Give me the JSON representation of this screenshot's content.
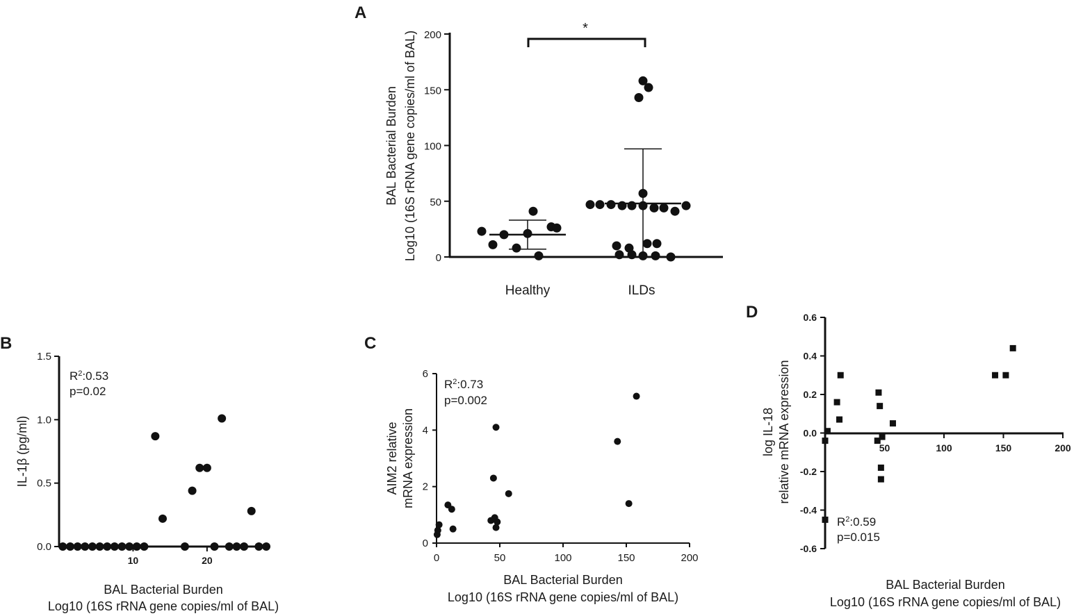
{
  "colors": {
    "ink": "#111111",
    "background": "#ffffff"
  },
  "chart_data": [
    {
      "panel": "A",
      "type": "scatter",
      "subtype": "dot plot with mean and SD",
      "ylabel_line1": "BAL Bacterial Burden",
      "ylabel_line2": "Log10 (16S rRNA gene copies/ml of BAL)",
      "ylim": [
        0,
        200
      ],
      "yticks": [
        "0",
        "50",
        "100",
        "150",
        "200"
      ],
      "categories": [
        "Healthy",
        "ILDs"
      ],
      "significance": "*",
      "series": [
        {
          "name": "Healthy",
          "mean": 20,
          "sd_low": 7,
          "sd_high": 33,
          "points": [
            [
              -0.33,
              23
            ],
            [
              -0.17,
              20
            ],
            [
              0,
              21
            ],
            [
              0.17,
              27
            ],
            [
              -0.25,
              11
            ],
            [
              -0.08,
              8
            ],
            [
              0.04,
              41
            ],
            [
              0.21,
              26
            ],
            [
              0.08,
              1
            ]
          ]
        },
        {
          "name": "ILDs",
          "mean": 48,
          "sd_low": 0,
          "sd_high": 97,
          "points": [
            [
              -0.38,
              47
            ],
            [
              -0.31,
              47
            ],
            [
              -0.23,
              47
            ],
            [
              -0.15,
              46
            ],
            [
              -0.08,
              46
            ],
            [
              0,
              46
            ],
            [
              0.08,
              44
            ],
            [
              0.15,
              44
            ],
            [
              0.23,
              41
            ],
            [
              0.31,
              46
            ],
            [
              -0.19,
              10
            ],
            [
              -0.1,
              8
            ],
            [
              0.03,
              12
            ],
            [
              0.1,
              12
            ],
            [
              -0.17,
              2
            ],
            [
              -0.08,
              2
            ],
            [
              0,
              1
            ],
            [
              0.09,
              1
            ],
            [
              0.2,
              0
            ],
            [
              0,
              57
            ],
            [
              -0.03,
              143
            ],
            [
              0.04,
              152
            ],
            [
              0,
              158
            ]
          ]
        }
      ]
    },
    {
      "panel": "B",
      "type": "scatter",
      "xlabel_line1": "BAL Bacterial Burden",
      "xlabel_line2": "Log10 (16S rRNA gene copies/ml of BAL)",
      "ylabel": "IL-1β (pg/ml)",
      "xlim": [
        0,
        28
      ],
      "ylim": [
        0,
        1.5
      ],
      "xticks": [
        "10",
        "20"
      ],
      "yticks": [
        "0.0",
        "0.5",
        "1.0",
        "1.5"
      ],
      "r2_prefix": "R",
      "r2_sup": "2",
      "r2_value": ":0.53",
      "p_text": "p=0.02",
      "x": [
        0.5,
        1.5,
        2.5,
        3.5,
        4.5,
        5.5,
        6.5,
        7.5,
        8.5,
        9.5,
        10.5,
        11.5,
        13,
        14,
        17,
        18,
        19,
        20,
        21,
        22,
        23,
        24,
        25,
        26,
        27,
        28
      ],
      "y": [
        0,
        0,
        0,
        0,
        0,
        0,
        0,
        0,
        0,
        0,
        0,
        0,
        0.87,
        0.22,
        0,
        0.44,
        0.62,
        0.62,
        0,
        1.01,
        0,
        0,
        0,
        0.28,
        0,
        0
      ]
    },
    {
      "panel": "C",
      "type": "scatter",
      "xlabel_line1": "BAL Bacterial Burden",
      "xlabel_line2": "Log10 (16S rRNA gene copies/ml of BAL)",
      "ylabel_line1": "AIM2 relative",
      "ylabel_line2": "mRNA expression",
      "xlim": [
        0,
        200
      ],
      "ylim": [
        0,
        6
      ],
      "xticks": [
        "0",
        "50",
        "100",
        "150",
        "200"
      ],
      "yticks": [
        "0",
        "2",
        "4",
        "6"
      ],
      "r2_prefix": "R",
      "r2_sup": "2",
      "r2_value": ":0.73",
      "p_text": "p=0.002",
      "x": [
        0.5,
        1,
        2,
        9,
        12,
        13,
        43,
        45,
        46,
        47,
        47,
        48,
        57,
        143,
        152,
        158
      ],
      "y": [
        0.3,
        0.45,
        0.65,
        1.35,
        1.2,
        0.5,
        0.8,
        2.3,
        0.9,
        0.55,
        4.1,
        0.75,
        1.75,
        3.6,
        1.4,
        5.2
      ]
    },
    {
      "panel": "D",
      "type": "scatter",
      "marker": "square",
      "xlabel_line1": "BAL Bacterial Burden",
      "xlabel_line2": "Log10 (16S rRNA gene copies/ml of BAL)",
      "ylabel_line1": "log IL-18",
      "ylabel_line2": "relative mRNA expression",
      "xlim": [
        0,
        200
      ],
      "ylim": [
        -0.6,
        0.6
      ],
      "xticks": [
        "50",
        "100",
        "150",
        "200"
      ],
      "yticks": [
        "-0.6",
        "-0.4",
        "-0.2",
        "0.0",
        "0.2",
        "0.4",
        "0.6"
      ],
      "r2_prefix": "R",
      "r2_sup": "2",
      "r2_value": ":0.59",
      "p_text": "p=0.015",
      "x": [
        0,
        2,
        10,
        12,
        13,
        44,
        45,
        46,
        47,
        47,
        48,
        57,
        143,
        152,
        158,
        0
      ],
      "y": [
        -0.04,
        0.01,
        0.16,
        0.07,
        0.3,
        -0.04,
        0.21,
        0.14,
        -0.18,
        -0.24,
        -0.02,
        0.05,
        0.3,
        0.3,
        0.44,
        -0.45
      ]
    }
  ]
}
